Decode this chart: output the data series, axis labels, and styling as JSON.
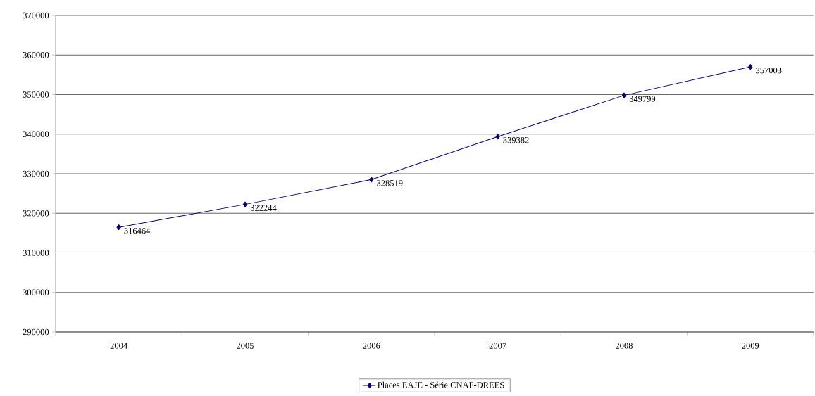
{
  "chart_data": {
    "type": "line",
    "categories": [
      "2004",
      "2005",
      "2006",
      "2007",
      "2008",
      "2009"
    ],
    "series": [
      {
        "name": "Places EAJE - Série CNAF-DREES",
        "color": "#000080",
        "values": [
          316464,
          322244,
          328519,
          339382,
          349799,
          357003
        ]
      }
    ],
    "ylim": [
      290000,
      370000
    ],
    "yticks": [
      290000,
      300000,
      310000,
      320000,
      330000,
      340000,
      350000,
      360000,
      370000
    ],
    "grid": "y",
    "legend": "bottom",
    "marker": "diamond",
    "line_style": "solid",
    "data_labels": true
  }
}
